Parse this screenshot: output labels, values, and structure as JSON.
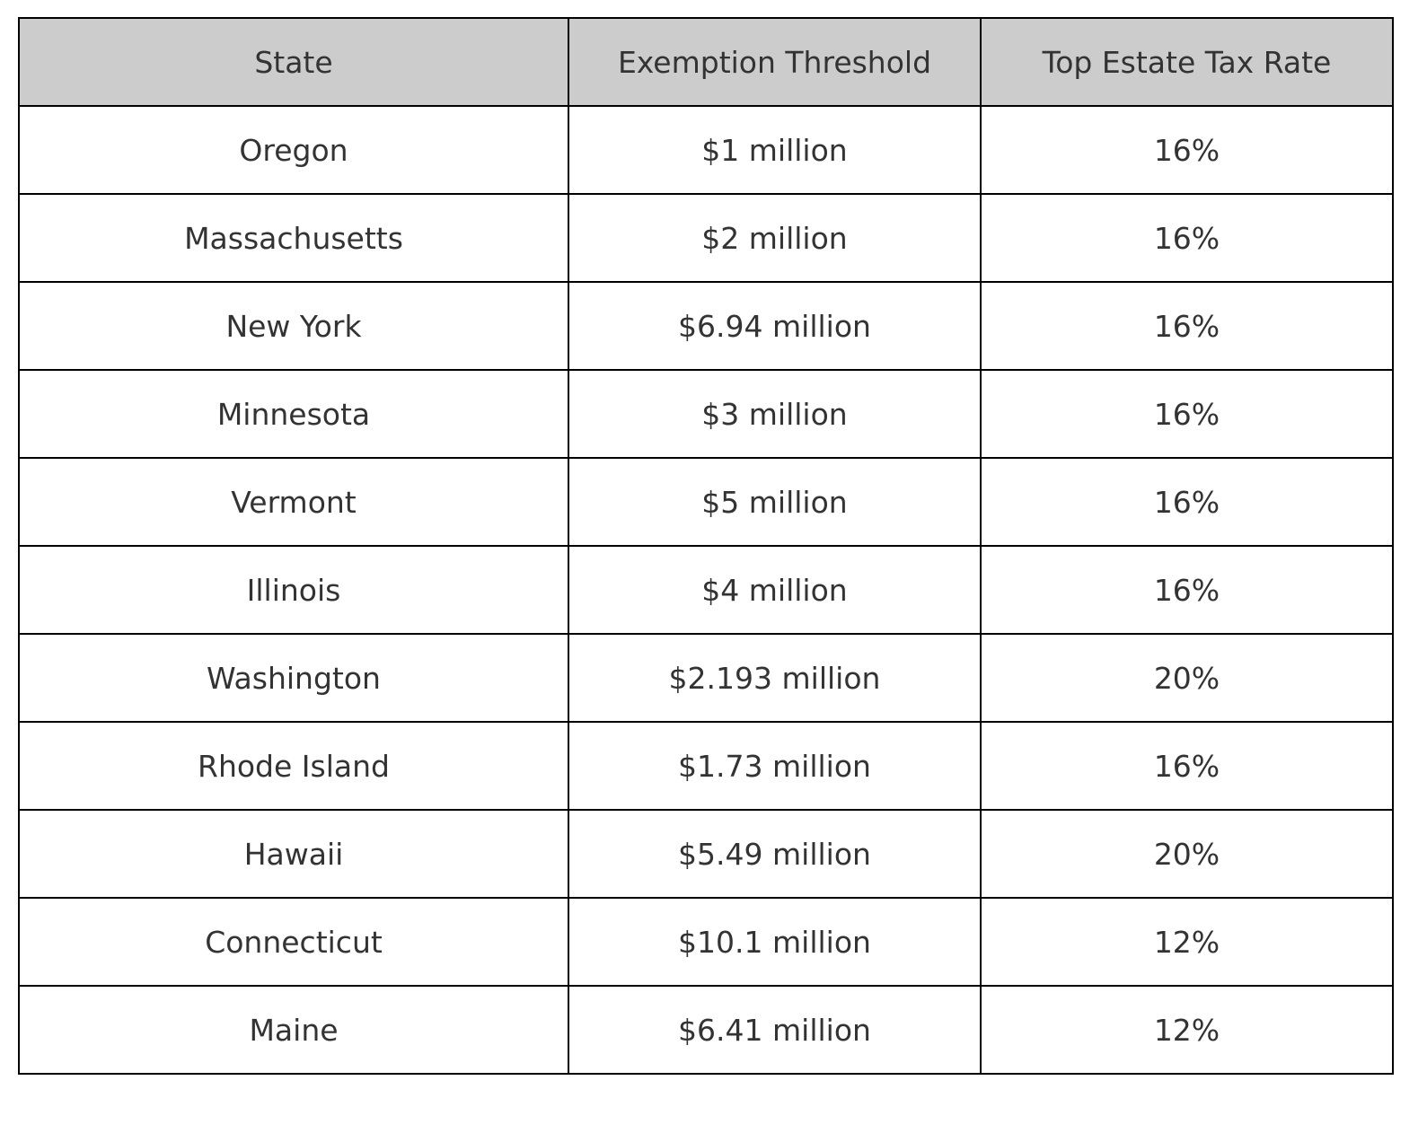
{
  "chart_data": {
    "type": "table",
    "columns": [
      "State",
      "Exemption Threshold",
      "Top Estate Tax Rate"
    ],
    "rows": [
      [
        "Oregon",
        "$1 million",
        "16%"
      ],
      [
        "Massachusetts",
        "$2 million",
        "16%"
      ],
      [
        "New York",
        "$6.94 million",
        "16%"
      ],
      [
        "Minnesota",
        "$3 million",
        "16%"
      ],
      [
        "Vermont",
        "$5 million",
        "16%"
      ],
      [
        "Illinois",
        "$4 million",
        "16%"
      ],
      [
        "Washington",
        "$2.193 million",
        "20%"
      ],
      [
        "Rhode Island",
        "$1.73 million",
        "16%"
      ],
      [
        "Hawaii",
        "$5.49 million",
        "20%"
      ],
      [
        "Connecticut",
        "$10.1 million",
        "12%"
      ],
      [
        "Maine",
        "$6.41 million",
        "12%"
      ]
    ]
  },
  "colors": {
    "header_bg": "#cccccc",
    "border": "#000000",
    "text": "#333333",
    "cell_bg": "#ffffff"
  }
}
